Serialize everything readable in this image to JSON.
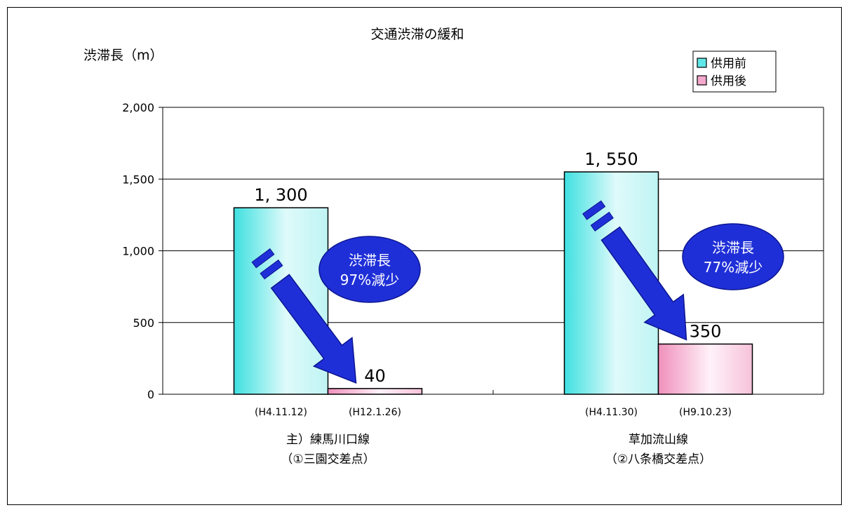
{
  "chart_data": {
    "type": "bar",
    "title": "交通渋滞の緩和",
    "ylabel": "渋滞長（m）",
    "ylim": [
      0,
      2000
    ],
    "yticks": [
      0,
      500,
      1000,
      1500,
      2000
    ],
    "ytick_labels": [
      "0",
      "500",
      "1,000",
      "1,500",
      "2,000"
    ],
    "grid": true,
    "legend_position": "top-right",
    "categories": [
      {
        "name": "主）練馬川口線",
        "sub": "（①三園交差点）"
      },
      {
        "name": "草加流山線",
        "sub": "（②八条橋交差点）"
      }
    ],
    "series": [
      {
        "name": "供用前",
        "color": "#5fe8e8",
        "values": [
          1300,
          1550
        ],
        "value_labels": [
          "1, 300",
          "1, 550"
        ],
        "dates": [
          "(H4.11.12)",
          "(H4.11.30)"
        ]
      },
      {
        "name": "供用後",
        "color": "#f4a8cc",
        "values": [
          40,
          350
        ],
        "value_labels": [
          "40",
          "350"
        ],
        "dates": [
          "(H12.1.26)",
          "(H9.10.23)"
        ]
      }
    ],
    "annotations": [
      {
        "line1": "渋滞長",
        "line2": "97%減少"
      },
      {
        "line1": "渋滞長",
        "line2": "77%減少"
      }
    ]
  }
}
